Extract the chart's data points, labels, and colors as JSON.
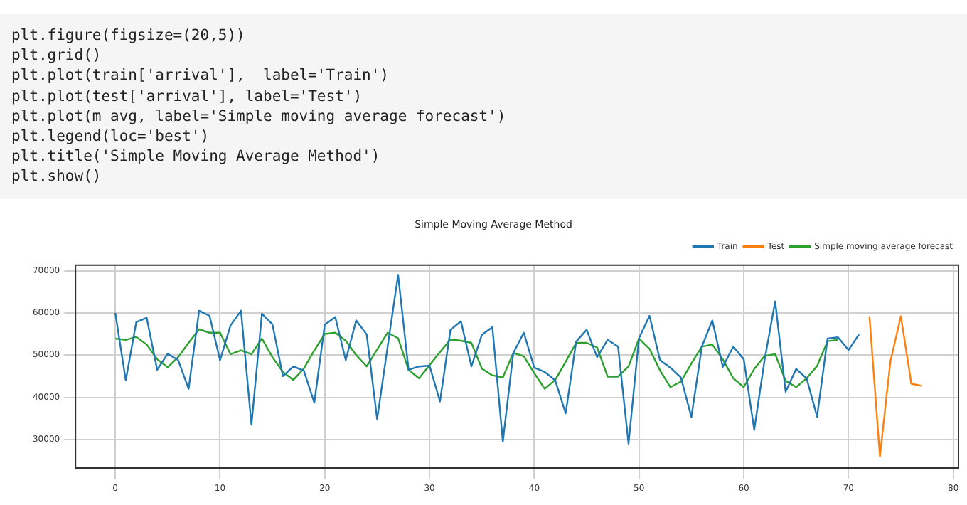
{
  "chart_data": {
    "type": "line",
    "title": "Simple Moving Average Method",
    "annotations": [
      "plt.figure(figsize=(20,5))",
      "plt.grid()",
      "plt.plot(train['arrival'],  label='Train')",
      "plt.plot(test['arrival'], label='Test')",
      "plt.plot(m_avg, label='Simple moving average forecast')",
      "plt.legend(loc='best')",
      "plt.title('Simple Moving Average Method')",
      "plt.show()"
    ],
    "xlim": [
      -3.8,
      80.5
    ],
    "xticks": [
      0,
      10,
      20,
      30,
      40,
      50,
      60,
      70,
      80
    ],
    "ylim": [
      23300,
      71300
    ],
    "yticks": [
      30000,
      40000,
      50000,
      60000,
      70000
    ],
    "grid": true,
    "legend": "top right",
    "marker": "none",
    "line_style": "solid",
    "series": [
      {
        "name": "Train",
        "color": "#1f77b4",
        "x": [
          0,
          1,
          2,
          3,
          4,
          5,
          6,
          7,
          8,
          9,
          10,
          11,
          12,
          13,
          14,
          15,
          16,
          17,
          18,
          19,
          20,
          21,
          22,
          23,
          24,
          25,
          26,
          27,
          28,
          29,
          30,
          31,
          32,
          33,
          34,
          35,
          36,
          37,
          38,
          39,
          40,
          41,
          42,
          43,
          44,
          45,
          46,
          47,
          48,
          49,
          50,
          51,
          52,
          53,
          54,
          55,
          56,
          57,
          58,
          59,
          60,
          61,
          62,
          63,
          64,
          65,
          66,
          67,
          68,
          69,
          70,
          71
        ],
        "values": [
          60000,
          44000,
          57800,
          58800,
          46500,
          50300,
          48800,
          42000,
          60500,
          59300,
          48800,
          57000,
          60500,
          33500,
          59800,
          57300,
          45000,
          47300,
          46300,
          38700,
          57200,
          59000,
          48800,
          58200,
          54900,
          34800,
          52000,
          69000,
          46500,
          47300,
          47500,
          39000,
          56000,
          58000,
          47300,
          54800,
          56600,
          29500,
          50500,
          55300,
          47000,
          46000,
          44000,
          36200,
          53200,
          56000,
          49500,
          53600,
          52000,
          29000,
          54000,
          59300,
          48800,
          47000,
          44700,
          35300,
          52000,
          58200,
          47200,
          52000,
          49000,
          32300,
          49000,
          62700,
          41300,
          46700,
          44500,
          35400,
          53900,
          54200,
          51200,
          54900
        ]
      },
      {
        "name": "Test",
        "color": "#ff7f0e",
        "x": [
          72,
          73,
          74,
          75,
          76,
          77
        ],
        "values": [
          59200,
          26000,
          48500,
          59200,
          43200,
          42700
        ]
      },
      {
        "name": "Simple moving average forecast",
        "color": "#2ca02c",
        "x": [
          0,
          1,
          2,
          3,
          4,
          5,
          6,
          7,
          8,
          9,
          10,
          11,
          12,
          13,
          14,
          15,
          16,
          17,
          18,
          19,
          20,
          21,
          22,
          23,
          24,
          25,
          26,
          27,
          28,
          29,
          30,
          31,
          32,
          33,
          34,
          35,
          36,
          37,
          38,
          39,
          40,
          41,
          42,
          43,
          44,
          45,
          46,
          47,
          48,
          49,
          50,
          51,
          52,
          53,
          54,
          55,
          56,
          57,
          58,
          59,
          60,
          61,
          62,
          63,
          64,
          65,
          66,
          67,
          68,
          69
        ],
        "values": [
          53900,
          53600,
          54300,
          52500,
          49000,
          47100,
          49500,
          52900,
          56100,
          55300,
          55300,
          50200,
          51100,
          50200,
          53900,
          49500,
          46000,
          44100,
          46800,
          51100,
          55000,
          55300,
          53400,
          50000,
          47300,
          51300,
          55300,
          54000,
          46500,
          44500,
          47600,
          50700,
          53700,
          53400,
          52900,
          46800,
          45200,
          44700,
          50500,
          49700,
          45700,
          42000,
          44100,
          48400,
          52900,
          52900,
          51800,
          44900,
          44900,
          47300,
          53900,
          51500,
          46400,
          42400,
          43700,
          48000,
          52000,
          52500,
          49000,
          44500,
          42400,
          46700,
          49800,
          50200,
          43900,
          42400,
          44500,
          47400,
          53300,
          53600
        ]
      }
    ]
  }
}
